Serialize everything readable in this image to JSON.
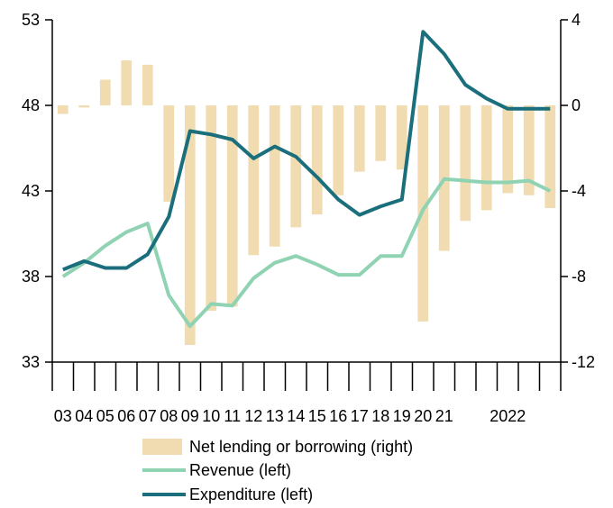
{
  "chart_data": {
    "type": "bar+line",
    "categories": [
      "03",
      "04",
      "05",
      "06",
      "07",
      "08",
      "09",
      "10",
      "11",
      "12",
      "13",
      "14",
      "15",
      "16",
      "17",
      "18",
      "19",
      "20",
      "21",
      "",
      "",
      "2022",
      "",
      ""
    ],
    "left_axis": {
      "ylim": [
        33,
        53
      ],
      "ticks": [
        33,
        38,
        43,
        48,
        53
      ],
      "tick_labels": [
        "33",
        "38",
        "43",
        "48",
        "53"
      ]
    },
    "right_axis": {
      "ylim": [
        -12,
        4
      ],
      "ticks": [
        -12,
        -8,
        -4,
        0,
        4
      ],
      "tick_labels": [
        "-12",
        "-8",
        "-4",
        "0",
        "4"
      ]
    },
    "series": [
      {
        "name": "Net lending or borrowing (right)",
        "type": "bar",
        "axis": "right",
        "color": "#f0dcb0",
        "values": [
          -0.4,
          -0.1,
          1.2,
          2.1,
          1.9,
          -4.5,
          -11.2,
          -9.6,
          -9.4,
          -7.0,
          -6.6,
          -5.7,
          -5.1,
          -4.2,
          -3.1,
          -2.6,
          -3.0,
          -10.1,
          -6.8,
          -5.4,
          -4.9,
          -4.1,
          -4.2,
          -4.8
        ]
      },
      {
        "name": "Revenue (left)",
        "type": "line",
        "axis": "left",
        "color": "#8fd3b3",
        "values": [
          38.0,
          38.8,
          39.8,
          40.6,
          41.1,
          36.9,
          35.1,
          36.4,
          36.3,
          37.9,
          38.8,
          39.2,
          38.7,
          38.1,
          38.1,
          39.2,
          39.2,
          41.9,
          43.7,
          43.6,
          43.5,
          43.5,
          43.6,
          43.0
        ]
      },
      {
        "name": "Expenditure (left)",
        "type": "line",
        "axis": "left",
        "color": "#1b6f7c",
        "values": [
          38.4,
          38.9,
          38.5,
          38.5,
          39.3,
          41.5,
          46.5,
          46.3,
          46.0,
          44.9,
          45.6,
          45.0,
          43.8,
          42.5,
          41.6,
          42.1,
          42.5,
          52.3,
          51.0,
          49.2,
          48.4,
          47.8,
          47.8,
          47.8
        ]
      }
    ],
    "legend_position": "bottom",
    "grid": false
  }
}
